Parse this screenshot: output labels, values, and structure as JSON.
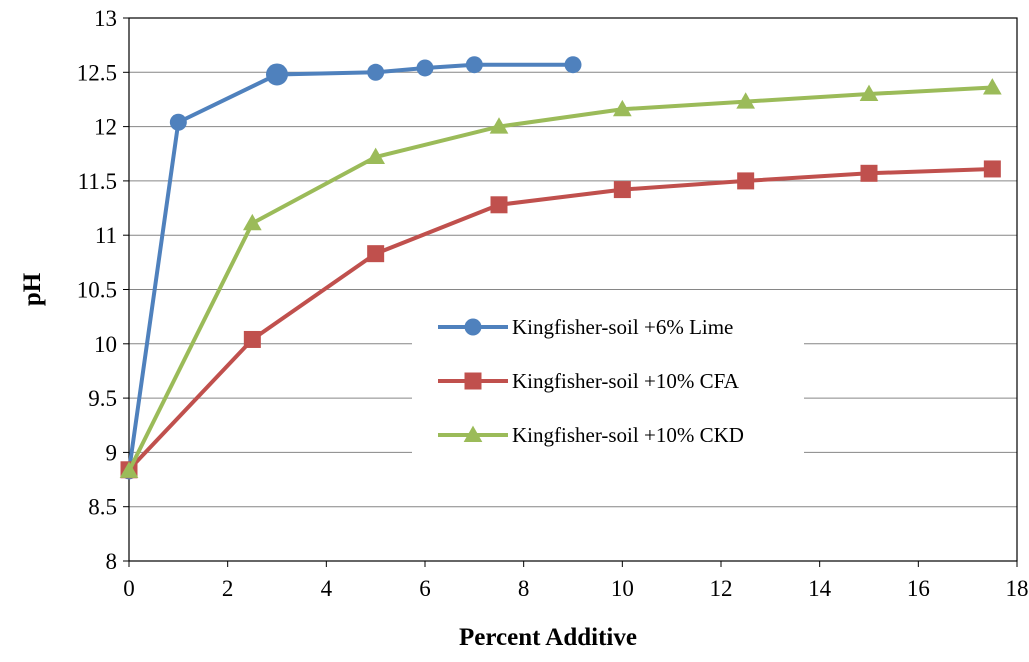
{
  "chart_data": {
    "type": "line",
    "title": "",
    "xlabel": "Percent Additive",
    "ylabel": "pH",
    "xlim": [
      0,
      18
    ],
    "ylim": [
      8,
      13
    ],
    "xticks": [
      0,
      2,
      4,
      6,
      8,
      10,
      12,
      14,
      16,
      18
    ],
    "yticks": [
      8,
      8.5,
      9,
      9.5,
      10,
      10.5,
      11,
      11.5,
      12,
      12.5,
      13
    ],
    "grid": "horizontal",
    "legend_position": "center-right",
    "series": [
      {
        "name": "Kingfisher-soil +6% Lime",
        "color": "#4F81BD",
        "marker": "circle",
        "x": [
          0,
          1,
          3,
          5,
          6,
          7,
          9
        ],
        "y": [
          8.83,
          12.04,
          12.48,
          12.5,
          12.54,
          12.57,
          12.57
        ]
      },
      {
        "name": "Kingfisher-soil +10% CFA",
        "color": "#C0504D",
        "marker": "square",
        "x": [
          0,
          2.5,
          5,
          7.5,
          10,
          12.5,
          15,
          17.5
        ],
        "y": [
          8.84,
          10.04,
          10.83,
          11.28,
          11.42,
          11.5,
          11.57,
          11.61
        ]
      },
      {
        "name": "Kingfisher-soil +10% CKD",
        "color": "#9BBB59",
        "marker": "triangle",
        "x": [
          0,
          2.5,
          5,
          7.5,
          10,
          12.5,
          15,
          17.5
        ],
        "y": [
          8.83,
          11.11,
          11.72,
          12.0,
          12.16,
          12.23,
          12.3,
          12.36
        ]
      }
    ]
  }
}
